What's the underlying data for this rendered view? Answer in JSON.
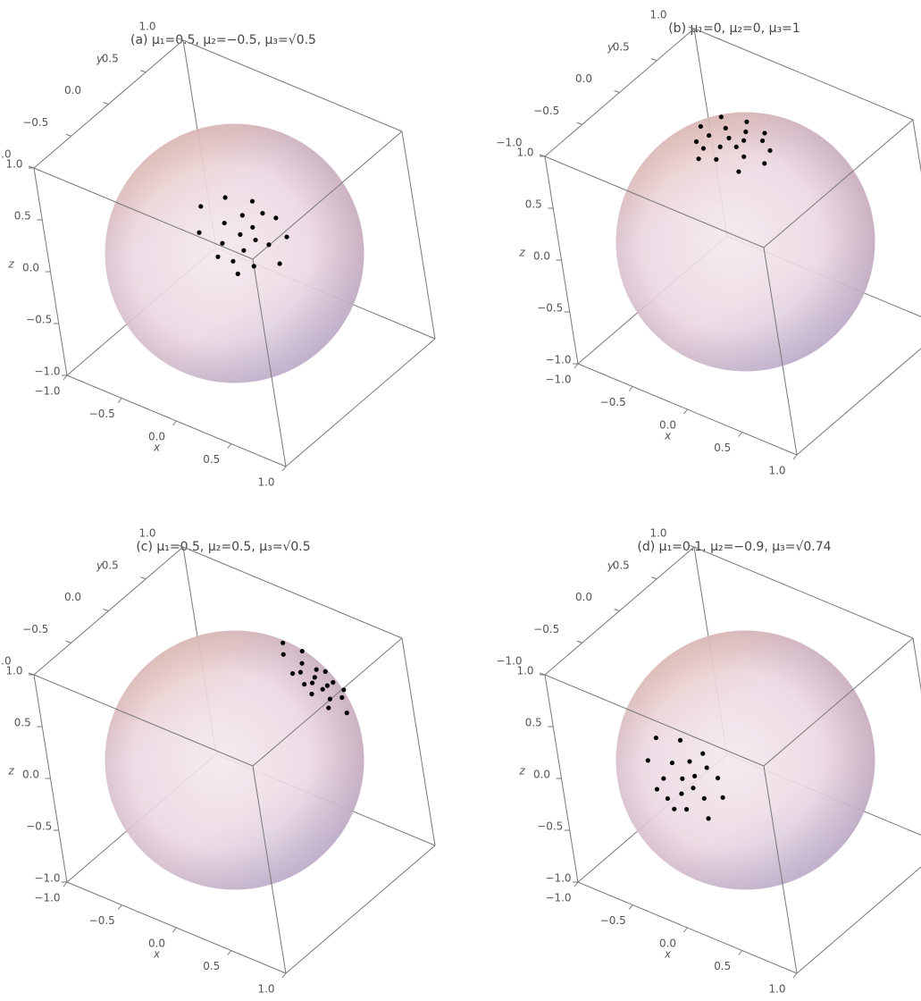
{
  "chart_data": [
    {
      "type": "scatter3d",
      "title": "(a) μ₁=0.5, μ₂=−0.5, μ₃=√0.5",
      "xlabel": "x",
      "ylabel": "y",
      "zlabel": "z",
      "color": "#000000",
      "xlim": [
        -1,
        1
      ],
      "ylim": [
        -1,
        1
      ],
      "zlim": [
        -1,
        1
      ],
      "xticks": [
        {
          "value": -1,
          "label": "−1.0"
        },
        {
          "value": -0.5,
          "label": "−0.5"
        },
        {
          "value": 0,
          "label": "0.0"
        },
        {
          "value": 0.5,
          "label": "0.5"
        },
        {
          "value": 1,
          "label": "1.0"
        }
      ],
      "yticks": [
        {
          "value": -1,
          "label": "−1.0"
        },
        {
          "value": -0.5,
          "label": "−0.5"
        },
        {
          "value": 0,
          "label": "0.0"
        },
        {
          "value": 0.5,
          "label": "0.5"
        },
        {
          "value": 1,
          "label": "1.0"
        }
      ],
      "zticks": [
        {
          "value": -1,
          "label": "−1.0"
        },
        {
          "value": -0.5,
          "label": "−0.5"
        },
        {
          "value": 0,
          "label": "0.0"
        },
        {
          "value": 0.5,
          "label": "0.5"
        },
        {
          "value": 1,
          "label": "1.0"
        }
      ],
      "points": {
        "x": [
          0.5,
          0.55,
          0.38,
          0.69,
          0.43,
          0.66,
          0.66,
          0.26,
          0.48,
          0.32,
          0.8,
          0.2,
          0.6,
          0.42,
          0.46,
          0.59,
          0.77,
          0.53,
          0.57,
          0.56
        ],
        "y": [
          -0.5,
          -0.4,
          -0.52,
          -0.41,
          -0.72,
          -0.59,
          -0.24,
          -0.69,
          -0.27,
          -0.39,
          -0.45,
          -0.55,
          -0.45,
          -0.63,
          -0.39,
          -0.71,
          -0.28,
          -0.67,
          -0.28,
          -0.56
        ],
        "z": [
          0.71,
          0.74,
          0.78,
          0.64,
          0.6,
          0.53,
          0.78,
          0.74,
          0.88,
          0.92,
          0.53,
          0.88,
          0.67,
          0.67,
          0.81,
          0.5,
          0.67,
          0.57,
          0.81,
          0.62
        ]
      }
    },
    {
      "type": "scatter3d",
      "title": "(b) μ₁=0, μ₂=0, μ₃=1",
      "xlabel": "x",
      "ylabel": "y",
      "zlabel": "z",
      "color": "#000000",
      "xlim": [
        -1,
        1
      ],
      "ylim": [
        -1,
        1
      ],
      "zlim": [
        -1,
        1
      ],
      "xticks": [
        {
          "value": -1,
          "label": "−1.0"
        },
        {
          "value": -0.5,
          "label": "−0.5"
        },
        {
          "value": 0,
          "label": "0.0"
        },
        {
          "value": 0.5,
          "label": "0.5"
        },
        {
          "value": 1,
          "label": "1.0"
        }
      ],
      "yticks": [
        {
          "value": -1,
          "label": "−1.0"
        },
        {
          "value": -0.5,
          "label": "−0.5"
        },
        {
          "value": 0,
          "label": "0.0"
        },
        {
          "value": 0.5,
          "label": "0.5"
        },
        {
          "value": 1,
          "label": "1.0"
        }
      ],
      "zticks": [
        {
          "value": -1,
          "label": "−1.0"
        },
        {
          "value": -0.5,
          "label": "−0.5"
        },
        {
          "value": 0,
          "label": "0.0"
        },
        {
          "value": 0.5,
          "label": "0.5"
        },
        {
          "value": 1,
          "label": "1.0"
        }
      ],
      "points": {
        "x": [
          0,
          0.1,
          -0.1,
          0.2,
          -0.2,
          0.05,
          0.3,
          -0.3,
          0.15,
          -0.05,
          0.25,
          -0.25,
          0.1,
          -0.15,
          0.05,
          -0.08,
          0.35,
          -0.1,
          0.2,
          0
        ],
        "y": [
          0,
          0.05,
          0.1,
          -0.1,
          -0.15,
          -0.25,
          0.1,
          0.05,
          0.25,
          0.3,
          -0.25,
          0.25,
          -0.05,
          -0.05,
          0.15,
          -0.3,
          -0.05,
          -0.2,
          0.15,
          -0.12
        ],
        "z": [
          1,
          0.99,
          0.99,
          0.97,
          0.97,
          0.97,
          0.95,
          0.95,
          0.96,
          0.95,
          0.94,
          0.94,
          0.99,
          0.99,
          0.99,
          0.95,
          0.94,
          0.98,
          0.97,
          0.99
        ]
      }
    },
    {
      "type": "scatter3d",
      "title": "(c) μ₁=0.5, μ₂=0.5, μ₃=√0.5",
      "xlabel": "x",
      "ylabel": "y",
      "zlabel": "z",
      "color": "#000000",
      "xlim": [
        -1,
        1
      ],
      "ylim": [
        -1,
        1
      ],
      "zlim": [
        -1,
        1
      ],
      "xticks": [
        {
          "value": -1,
          "label": "−1.0"
        },
        {
          "value": -0.5,
          "label": "−0.5"
        },
        {
          "value": 0,
          "label": "0.0"
        },
        {
          "value": 0.5,
          "label": "0.5"
        },
        {
          "value": 1,
          "label": "1.0"
        }
      ],
      "yticks": [
        {
          "value": -1,
          "label": "−1.0"
        },
        {
          "value": -0.5,
          "label": "−0.5"
        },
        {
          "value": 0,
          "label": "0.0"
        },
        {
          "value": 0.5,
          "label": "0.5"
        },
        {
          "value": 1,
          "label": "1.0"
        }
      ],
      "zticks": [
        {
          "value": -1,
          "label": "−1.0"
        },
        {
          "value": -0.5,
          "label": "−0.5"
        },
        {
          "value": 0,
          "label": "0.0"
        },
        {
          "value": 0.5,
          "label": "0.5"
        },
        {
          "value": 1,
          "label": "1.0"
        }
      ],
      "points": {
        "x": [
          0.5,
          0.55,
          0.38,
          0.69,
          0.43,
          0.66,
          0.66,
          0.26,
          0.48,
          0.32,
          0.8,
          0.2,
          0.6,
          0.42,
          0.46,
          0.59,
          0.77,
          0.53,
          0.57,
          0.56
        ],
        "y": [
          0.5,
          0.4,
          0.52,
          0.41,
          0.72,
          0.59,
          0.24,
          0.69,
          0.27,
          0.39,
          0.45,
          0.55,
          0.45,
          0.63,
          0.39,
          0.71,
          0.28,
          0.67,
          0.28,
          0.56
        ],
        "z": [
          0.71,
          0.74,
          0.78,
          0.64,
          0.6,
          0.53,
          0.78,
          0.74,
          0.88,
          0.92,
          0.53,
          0.88,
          0.67,
          0.67,
          0.81,
          0.5,
          0.67,
          0.57,
          0.81,
          0.62
        ]
      }
    },
    {
      "type": "scatter3d",
      "title": "(d) μ₁=0.1, μ₂=−0.9, μ₃=√0.74",
      "xlabel": "x",
      "ylabel": "y",
      "zlabel": "z",
      "color": "#000000",
      "xlim": [
        -1,
        1
      ],
      "ylim": [
        -1,
        1
      ],
      "zlim": [
        -1,
        1
      ],
      "xticks": [
        {
          "value": -1,
          "label": "−1.0"
        },
        {
          "value": -0.5,
          "label": "−0.5"
        },
        {
          "value": 0,
          "label": "0.0"
        },
        {
          "value": 0.5,
          "label": "0.5"
        },
        {
          "value": 1,
          "label": "1.0"
        }
      ],
      "yticks": [
        {
          "value": -1,
          "label": "−1.0"
        },
        {
          "value": -0.5,
          "label": "−0.5"
        },
        {
          "value": 0,
          "label": "0.0"
        },
        {
          "value": 0.5,
          "label": "0.5"
        },
        {
          "value": 1,
          "label": "1.0"
        }
      ],
      "zticks": [
        {
          "value": -1,
          "label": "−1.0"
        },
        {
          "value": -0.5,
          "label": "−0.5"
        },
        {
          "value": 0,
          "label": "0.0"
        },
        {
          "value": 0.5,
          "label": "0.5"
        },
        {
          "value": 1,
          "label": "1.0"
        }
      ],
      "points": {
        "x": [
          0.1,
          0.2,
          0,
          0.3,
          -0.09,
          0.16,
          0.39,
          -0.2,
          0.24,
          0.04,
          0.36,
          -0.16,
          0.2,
          -0.05,
          0.14,
          0.04,
          0.45,
          0,
          0.29,
          0.11
        ],
        "y": [
          -0.9,
          -0.87,
          -0.87,
          -0.92,
          -0.99,
          -0.98,
          -0.83,
          -0.91,
          -0.78,
          -0.78,
          -0.98,
          -0.82,
          -0.91,
          -0.94,
          -0.83,
          -0.98,
          -0.88,
          -0.99,
          -0.82,
          -0.95
        ],
        "z": [
          0.42,
          0.47,
          0.51,
          0.33,
          0.29,
          0.2,
          0.51,
          0.47,
          0.65,
          0.69,
          0.2,
          0.65,
          0.38,
          0.38,
          0.56,
          0.15,
          0.38,
          0.24,
          0.56,
          0.31
        ]
      }
    }
  ]
}
